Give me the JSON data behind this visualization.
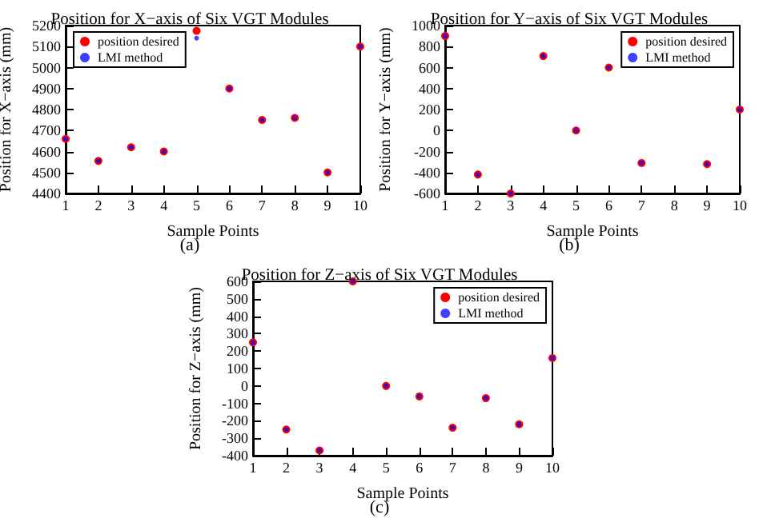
{
  "chart_data": [
    {
      "type": "scatter",
      "title": "Position for X−axis of Six VGT Modules",
      "xlabel": "Sample Points",
      "ylabel": "Position for X−axis (mm)",
      "annotations": [
        "(a)"
      ],
      "x": [
        1,
        2,
        3,
        4,
        5,
        6,
        7,
        8,
        9,
        10
      ],
      "xlim": [
        1,
        10
      ],
      "xticks": [
        1,
        2,
        3,
        4,
        5,
        6,
        7,
        8,
        9,
        10
      ],
      "ylim": [
        4400,
        5200
      ],
      "yticks": [
        4400,
        4500,
        4600,
        4700,
        4800,
        4900,
        5000,
        5100,
        5200
      ],
      "legend": "top left",
      "grid": false,
      "marker": "circle",
      "series": [
        {
          "name": "position desired",
          "color": "#ff0000",
          "values": [
            4660,
            4555,
            4620,
            4600,
            5175,
            4900,
            4750,
            4760,
            4500,
            5100
          ]
        },
        {
          "name": "LMI method",
          "color": "#0000ff",
          "values": [
            4660,
            4555,
            4620,
            4600,
            5140,
            4900,
            4750,
            4760,
            4500,
            5100
          ]
        }
      ]
    },
    {
      "type": "scatter",
      "title": "Position for Y−axis of Six VGT Modules",
      "xlabel": "Sample Points",
      "ylabel": "Position for Y−axis (mm)",
      "annotations": [
        "(b)"
      ],
      "x": [
        1,
        2,
        3,
        4,
        5,
        6,
        7,
        8,
        9,
        10
      ],
      "xlim": [
        1,
        10
      ],
      "xticks": [
        1,
        2,
        3,
        4,
        5,
        6,
        7,
        8,
        9,
        10
      ],
      "ylim": [
        -600,
        1000
      ],
      "yticks": [
        -600,
        -400,
        -200,
        0,
        200,
        400,
        600,
        800,
        1000
      ],
      "legend": "top right",
      "grid": false,
      "marker": "circle",
      "series": [
        {
          "name": "position desired",
          "color": "#ff0000",
          "values": [
            900,
            -420,
            -600,
            710,
            0,
            600,
            -310,
            null,
            -320,
            200
          ]
        },
        {
          "name": "LMI method",
          "color": "#0000ff",
          "values": [
            900,
            -420,
            -600,
            710,
            0,
            600,
            -310,
            null,
            -320,
            200
          ]
        }
      ]
    },
    {
      "type": "scatter",
      "title": "Position for Z−axis of Six VGT Modules",
      "xlabel": "Sample Points",
      "ylabel": "Position for Z−axis (mm)",
      "annotations": [
        "(c)"
      ],
      "x": [
        1,
        2,
        3,
        4,
        5,
        6,
        7,
        8,
        9,
        10
      ],
      "xlim": [
        1,
        10
      ],
      "xticks": [
        1,
        2,
        3,
        4,
        5,
        6,
        7,
        8,
        9,
        10
      ],
      "ylim": [
        -400,
        600
      ],
      "yticks": [
        -400,
        -300,
        -200,
        -100,
        0,
        100,
        200,
        300,
        400,
        500,
        600
      ],
      "legend": "top right",
      "grid": false,
      "marker": "circle",
      "series": [
        {
          "name": "position desired",
          "color": "#ff0000",
          "values": [
            250,
            -250,
            -370,
            600,
            0,
            -60,
            -240,
            -70,
            -220,
            160
          ]
        },
        {
          "name": "LMI method",
          "color": "#0000ff",
          "values": [
            250,
            -250,
            -370,
            600,
            0,
            -60,
            -240,
            -70,
            -220,
            160
          ]
        }
      ]
    }
  ]
}
